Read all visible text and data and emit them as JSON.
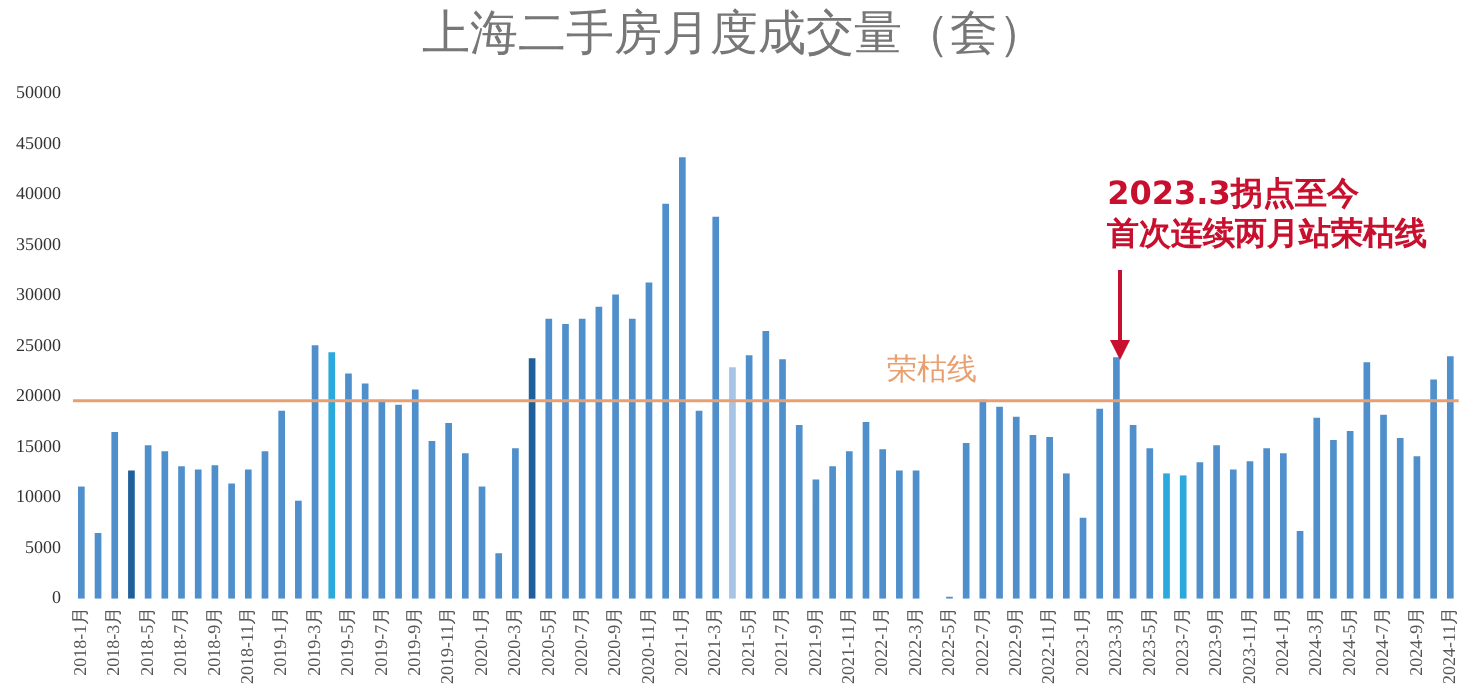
{
  "chart_data": {
    "type": "bar",
    "title": "上海二手房月度成交量（套）",
    "categories": [
      "2018-1月",
      null,
      "2018-3月",
      null,
      "2018-5月",
      null,
      "2018-7月",
      null,
      "2018-9月",
      null,
      "2018-11月",
      null,
      "2019-1月",
      null,
      "2019-3月",
      null,
      "2019-5月",
      null,
      "2019-7月",
      null,
      "2019-9月",
      null,
      "2019-11月",
      null,
      "2020-1月",
      null,
      "2020-3月",
      null,
      "2020-5月",
      null,
      "2020-7月",
      null,
      "2020-9月",
      null,
      "2020-11月",
      null,
      "2021-1月",
      null,
      "2021-3月",
      null,
      "2021-5月",
      null,
      "2021-7月",
      null,
      "2021-9月",
      null,
      "2021-11月",
      null,
      "2022-1月",
      null,
      "2022-3月",
      null,
      "2022-5月",
      null,
      "2022-7月",
      null,
      "2022-9月",
      null,
      "2022-11月",
      null,
      "2023-1月",
      null,
      "2023-3月",
      null,
      "2023-5月",
      null,
      "2023-7月",
      null,
      "2023-9月",
      null,
      "2023-11月",
      null,
      "2024-1月",
      null,
      "2024-3月",
      null,
      "2024-5月",
      null,
      "2024-7月",
      null,
      "2024-9月",
      null,
      "2024-11月"
    ],
    "values": [
      11100,
      6500,
      16500,
      12700,
      15200,
      14600,
      13100,
      12800,
      13200,
      11400,
      12800,
      14600,
      18600,
      9700,
      25100,
      24400,
      22300,
      21300,
      19700,
      19200,
      20700,
      15600,
      17400,
      14400,
      11100,
      4500,
      14900,
      23800,
      27700,
      27200,
      27700,
      28900,
      30100,
      27700,
      31300,
      39100,
      43700,
      18600,
      37800,
      22900,
      24100,
      26500,
      23700,
      17200,
      11800,
      13100,
      14600,
      17500,
      14800,
      12700,
      12700,
      0,
      200,
      15400,
      19700,
      19000,
      18000,
      16200,
      16000,
      12400,
      8000,
      18800,
      23900,
      17200,
      14900,
      12400,
      12200,
      13500,
      15200,
      12800,
      13600,
      14900,
      14400,
      6700,
      17900,
      15700,
      16600,
      23400,
      18200,
      15900,
      14100,
      21700,
      24000
    ],
    "colors": [
      "#4f8fcb",
      "#4f8fcb",
      "#4f8fcb",
      "#1f5f9c",
      "#4f8fcb",
      "#4f8fcb",
      "#4f8fcb",
      "#4f8fcb",
      "#4f8fcb",
      "#4f8fcb",
      "#4f8fcb",
      "#4f8fcb",
      "#4f8fcb",
      "#4f8fcb",
      "#4f8fcb",
      "#2ba8dc",
      "#4f8fcb",
      "#4f8fcb",
      "#4f8fcb",
      "#4f8fcb",
      "#4f8fcb",
      "#4f8fcb",
      "#4f8fcb",
      "#4f8fcb",
      "#4f8fcb",
      "#4f8fcb",
      "#4f8fcb",
      "#1f5f9c",
      "#4f8fcb",
      "#4f8fcb",
      "#4f8fcb",
      "#4f8fcb",
      "#4f8fcb",
      "#4f8fcb",
      "#4f8fcb",
      "#4f8fcb",
      "#4f8fcb",
      "#4f8fcb",
      "#4f8fcb",
      "#a8c4e4",
      "#4f8fcb",
      "#4f8fcb",
      "#4f8fcb",
      "#4f8fcb",
      "#4f8fcb",
      "#4f8fcb",
      "#4f8fcb",
      "#4f8fcb",
      "#4f8fcb",
      "#4f8fcb",
      "#4f8fcb",
      "#4f8fcb",
      "#4f8fcb",
      "#4f8fcb",
      "#4f8fcb",
      "#4f8fcb",
      "#4f8fcb",
      "#4f8fcb",
      "#4f8fcb",
      "#4f8fcb",
      "#4f8fcb",
      "#4f8fcb",
      "#4f8fcb",
      "#4f8fcb",
      "#4f8fcb",
      "#2ba8dc",
      "#2ba8dc",
      "#4f8fcb",
      "#4f8fcb",
      "#4f8fcb",
      "#4f8fcb",
      "#4f8fcb",
      "#4f8fcb",
      "#4f8fcb",
      "#4f8fcb",
      "#4f8fcb",
      "#4f8fcb",
      "#4f8fcb",
      "#4f8fcb",
      "#4f8fcb",
      "#4f8fcb",
      "#4f8fcb",
      "#4f8fcb"
    ],
    "ylim": [
      0,
      50000
    ],
    "yticks": [
      0,
      5000,
      10000,
      15000,
      20000,
      25000,
      30000,
      35000,
      40000,
      45000,
      50000
    ],
    "grid": false,
    "legend": false,
    "ref_lines": [
      {
        "axis": "y",
        "value": 19600,
        "label": "荣枯线",
        "color": "#e8a070"
      }
    ],
    "annotations": [
      "2023.3拐点至今首次连续两月站荣枯线"
    ]
  }
}
